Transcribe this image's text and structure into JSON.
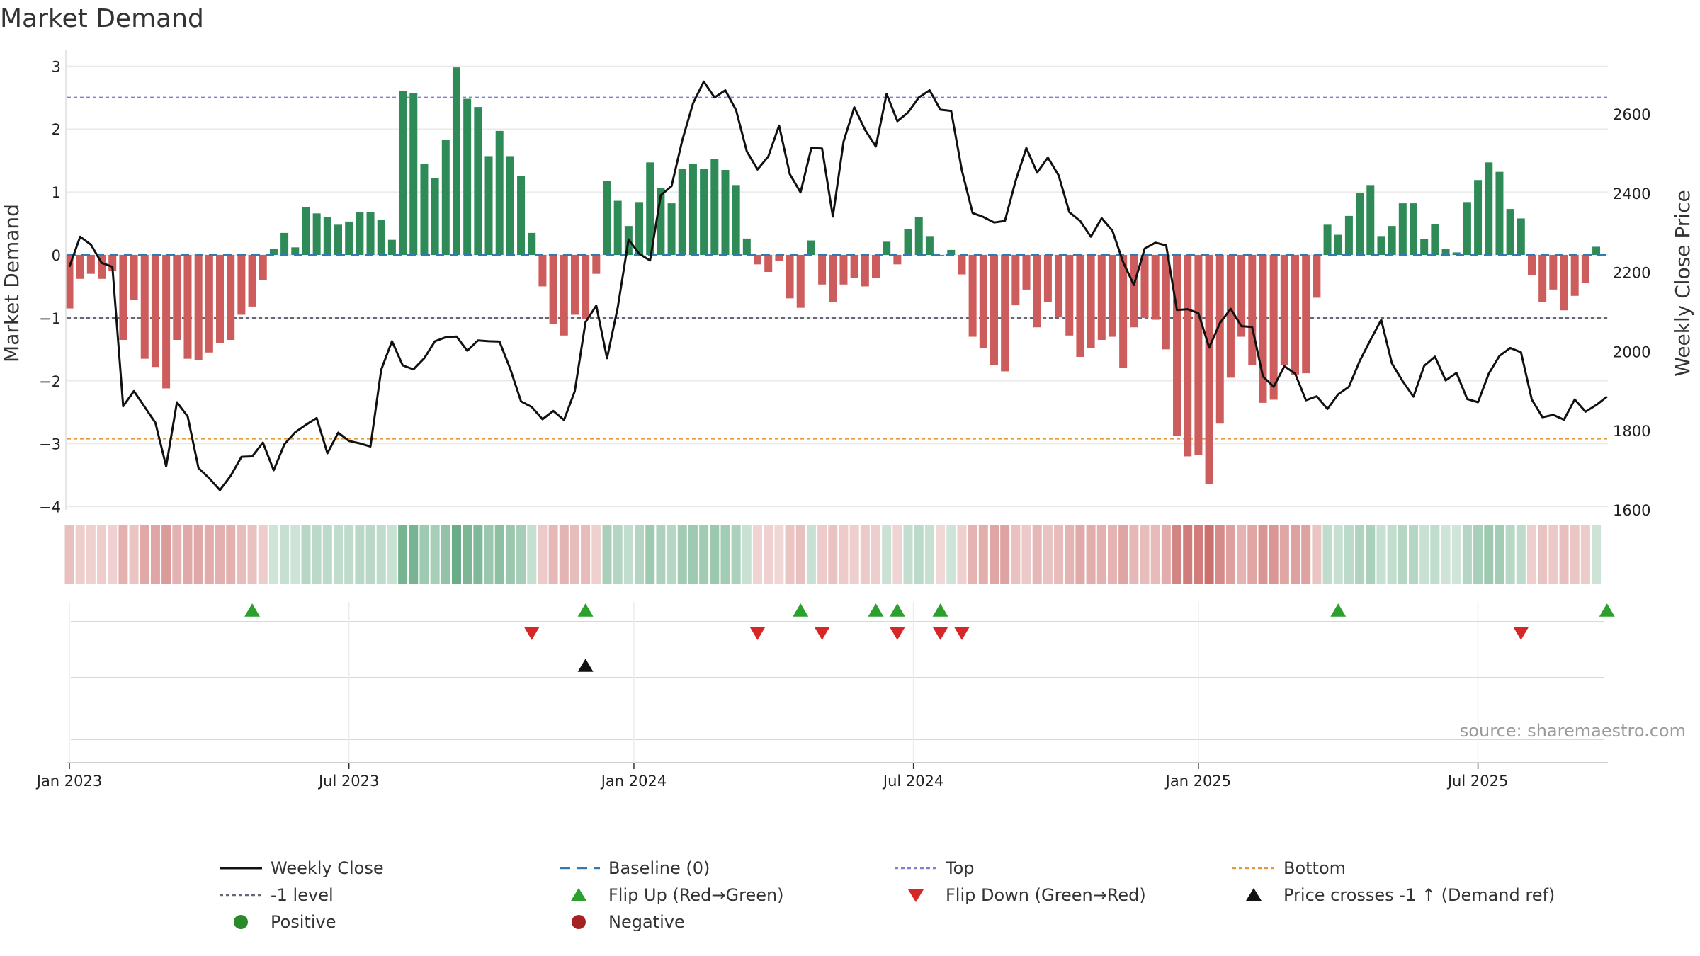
{
  "chart_data": {
    "type": "bar",
    "title": "Market Demand",
    "ylabel_left": "Market Demand",
    "ylabel_right": "Weekly Close Price",
    "source": "source: sharemaestro.com",
    "left_ylim": [
      -4.05,
      3.15
    ],
    "right_ylim": [
      1600,
      2745
    ],
    "left_yticks": [
      3,
      2,
      1,
      0,
      -1,
      -2,
      -3,
      -4
    ],
    "left_ytick_labels": [
      "3",
      "2",
      "1",
      "0",
      "−1",
      "−2",
      "−3",
      "−4"
    ],
    "right_yticks": [
      2600,
      2400,
      2200,
      2000,
      1800,
      1600
    ],
    "right_ytick_labels": [
      "2600",
      "2400",
      "2200",
      "2000",
      "1800",
      "1600"
    ],
    "week_start_offset": -1,
    "num_weeks": 144,
    "x_ticks": [
      {
        "week": 1,
        "label": "Jan 2023"
      },
      {
        "week": 27,
        "label": "Jul 2023"
      },
      {
        "week": 53.5,
        "label": "Jan 2024"
      },
      {
        "week": 79.5,
        "label": "Jul 2024"
      },
      {
        "week": 106,
        "label": "Jan 2025"
      },
      {
        "week": 132,
        "label": "Jul 2025"
      }
    ],
    "reference_lines": [
      {
        "name": "Top",
        "value": 2.5,
        "color": "#7f7fd5"
      },
      {
        "name": "-1 level",
        "value": -1,
        "color": "#666677"
      },
      {
        "name": "Bottom",
        "value": -2.92,
        "color": "#e69a33"
      }
    ],
    "demand": [
      -0.85,
      -0.38,
      -0.3,
      -0.38,
      -0.25,
      -1.35,
      -0.72,
      -1.65,
      -1.78,
      -2.12,
      -1.35,
      -1.65,
      -1.67,
      -1.55,
      -1.4,
      -1.35,
      -0.95,
      -0.82,
      -0.4,
      0.1,
      0.35,
      0.12,
      0.76,
      0.66,
      0.6,
      0.48,
      0.53,
      0.68,
      0.68,
      0.56,
      0.24,
      2.6,
      2.57,
      1.45,
      1.22,
      1.83,
      2.98,
      2.48,
      2.35,
      1.57,
      1.97,
      1.57,
      1.26,
      0.35,
      -0.5,
      -1.1,
      -1.28,
      -0.95,
      -1.02,
      -0.3,
      1.17,
      0.86,
      0.46,
      0.84,
      1.47,
      1.06,
      0.82,
      1.37,
      1.45,
      1.37,
      1.53,
      1.35,
      1.11,
      0.26,
      -0.15,
      -0.27,
      -0.1,
      -0.69,
      -0.84,
      0.23,
      -0.47,
      -0.75,
      -0.47,
      -0.37,
      -0.5,
      -0.37,
      0.21,
      -0.15,
      0.41,
      0.6,
      0.3,
      -0.02,
      0.08,
      -0.31,
      -1.3,
      -1.48,
      -1.75,
      -1.85,
      -0.8,
      -0.55,
      -1.15,
      -0.75,
      -0.98,
      -1.28,
      -1.62,
      -1.48,
      -1.35,
      -1.3,
      -1.8,
      -1.15,
      -1.0,
      -1.03,
      -1.5,
      -2.88,
      -3.2,
      -3.18,
      -3.64,
      -2.68,
      -1.95,
      -1.3,
      -1.75,
      -2.35,
      -2.3,
      -1.75,
      -1.9,
      -1.88,
      -0.68,
      0.48,
      0.32,
      0.62,
      0.99,
      1.11,
      0.3,
      0.46,
      0.82,
      0.82,
      0.25,
      0.49,
      0.1,
      0.04,
      0.84,
      1.19,
      1.47,
      1.32,
      0.73,
      0.58,
      -0.32,
      -0.75,
      -0.55,
      -0.88,
      -0.65,
      -0.45,
      0.13
    ],
    "series": [
      {
        "name": "Weekly Close",
        "x_offset": 0,
        "values": [
          2214,
          2290,
          2270,
          2224,
          2214,
          1862,
          1900,
          1860,
          1820,
          1710,
          1872,
          1836,
          1706,
          1680,
          1650,
          1686,
          1734,
          1735,
          1770,
          1700,
          1766,
          1796,
          1815,
          1832,
          1743,
          1795,
          1774,
          1768,
          1760,
          1954,
          2026,
          1965,
          1955,
          1983,
          2026,
          2036,
          2038,
          2002,
          2028,
          2026,
          2025,
          1956,
          1874,
          1860,
          1829,
          1850,
          1827,
          1900,
          2074,
          2116,
          1983,
          2112,
          2283,
          2247,
          2230,
          2395,
          2418,
          2534,
          2627,
          2682,
          2642,
          2660,
          2610,
          2506,
          2460,
          2493,
          2571,
          2448,
          2402,
          2514,
          2513,
          2341,
          2531,
          2617,
          2560,
          2518,
          2651,
          2582,
          2604,
          2642,
          2660,
          2611,
          2608,
          2458,
          2350,
          2340,
          2326,
          2330,
          2431,
          2514,
          2452,
          2490,
          2445,
          2352,
          2330,
          2290,
          2337,
          2305,
          2226,
          2168,
          2260,
          2275,
          2268,
          2105,
          2107,
          2097,
          2010,
          2072,
          2108,
          2064,
          2062,
          1937,
          1911,
          1963,
          1944,
          1877,
          1887,
          1855,
          1892,
          1911,
          1976,
          2029,
          2080,
          1970,
          1925,
          1886,
          1964,
          1987,
          1927,
          1946,
          1880,
          1872,
          1944,
          1989,
          2009,
          1998,
          1879,
          1834,
          1840,
          1828,
          1879,
          1848,
          1865,
          1886
        ]
      }
    ],
    "heat_strip": {
      "positive_color": "#2e8b57",
      "negative_color": "#c0504d"
    },
    "markers": {
      "flip_up_weeks": [
        18,
        49,
        69,
        76,
        78,
        82,
        119,
        144
      ],
      "flip_down_weeks": [
        44,
        65,
        71,
        78,
        82,
        84,
        136
      ],
      "price_cross_weeks": [
        49
      ]
    },
    "legend": [
      {
        "key": "weekly-close",
        "label": "Weekly Close",
        "kind": "line",
        "color": "#111111"
      },
      {
        "key": "baseline",
        "label": "Baseline (0)",
        "kind": "dash",
        "color": "#2e7bb5"
      },
      {
        "key": "top",
        "label": "Top",
        "kind": "dot",
        "color": "#7f7fd5"
      },
      {
        "key": "bottom",
        "label": "Bottom",
        "kind": "dot",
        "color": "#e69a33"
      },
      {
        "key": "minus-one",
        "label": "-1 level",
        "kind": "dot",
        "color": "#666677"
      },
      {
        "key": "flip-up",
        "label": "Flip Up (Red→Green)",
        "kind": "tri-up",
        "color": "#2ca02c"
      },
      {
        "key": "flip-down",
        "label": "Flip Down (Green→Red)",
        "kind": "tri-down",
        "color": "#d62728"
      },
      {
        "key": "price-cross",
        "label": "Price crosses -1 ↑ (Demand ref)",
        "kind": "tri-up",
        "color": "#111111"
      },
      {
        "key": "positive",
        "label": "Positive",
        "kind": "circle",
        "color": "#2a8a2a"
      },
      {
        "key": "negative",
        "label": "Negative",
        "kind": "circle",
        "color": "#a52222"
      }
    ],
    "colors": {
      "positive_bar": "#2e8b57",
      "negative_bar": "#cd5c5c",
      "price_line": "#111111",
      "baseline": "#2e7bb5",
      "gridline": "#eaeaea"
    }
  }
}
